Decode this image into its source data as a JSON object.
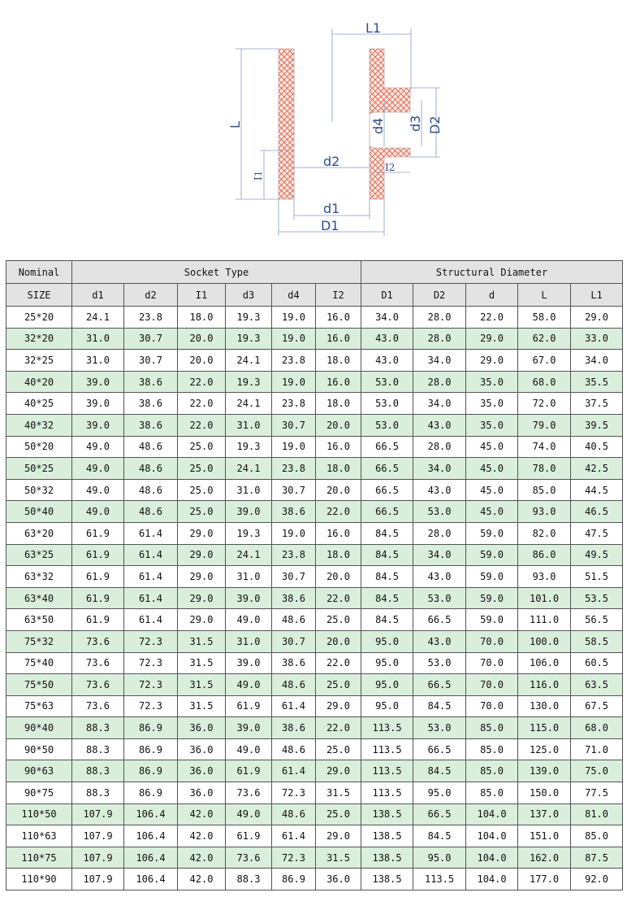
{
  "drawing": {
    "labels": {
      "L1": "L1",
      "L": "L",
      "d4": "d4",
      "d3": "d3",
      "D2": "D2",
      "d2": "d2",
      "I1": "I1",
      "I2": "I2",
      "d1": "d1",
      "D1": "D1"
    },
    "hatch_color": "#e0604a",
    "dim_color": "#2f4f8a"
  },
  "table": {
    "group_headers": [
      "Nominal",
      "Socket Type",
      "Structural Diameter"
    ],
    "columns": [
      "SIZE",
      "d1",
      "d2",
      "I1",
      "d3",
      "d4",
      "I2",
      "D1",
      "D2",
      "d",
      "L",
      "L1"
    ],
    "colors": {
      "header": "#e3e3e3",
      "stripe": "#d9eedb"
    },
    "rows": [
      [
        "25*20",
        "24.1",
        "23.8",
        "18.0",
        "19.3",
        "19.0",
        "16.0",
        "34.0",
        "28.0",
        "22.0",
        "58.0",
        "29.0"
      ],
      [
        "32*20",
        "31.0",
        "30.7",
        "20.0",
        "19.3",
        "19.0",
        "16.0",
        "43.0",
        "28.0",
        "29.0",
        "62.0",
        "33.0"
      ],
      [
        "32*25",
        "31.0",
        "30.7",
        "20.0",
        "24.1",
        "23.8",
        "18.0",
        "43.0",
        "34.0",
        "29.0",
        "67.0",
        "34.0"
      ],
      [
        "40*20",
        "39.0",
        "38.6",
        "22.0",
        "19.3",
        "19.0",
        "16.0",
        "53.0",
        "28.0",
        "35.0",
        "68.0",
        "35.5"
      ],
      [
        "40*25",
        "39.0",
        "38.6",
        "22.0",
        "24.1",
        "23.8",
        "18.0",
        "53.0",
        "34.0",
        "35.0",
        "72.0",
        "37.5"
      ],
      [
        "40*32",
        "39.0",
        "38.6",
        "22.0",
        "31.0",
        "30.7",
        "20.0",
        "53.0",
        "43.0",
        "35.0",
        "79.0",
        "39.5"
      ],
      [
        "50*20",
        "49.0",
        "48.6",
        "25.0",
        "19.3",
        "19.0",
        "16.0",
        "66.5",
        "28.0",
        "45.0",
        "74.0",
        "40.5"
      ],
      [
        "50*25",
        "49.0",
        "48.6",
        "25.0",
        "24.1",
        "23.8",
        "18.0",
        "66.5",
        "34.0",
        "45.0",
        "78.0",
        "42.5"
      ],
      [
        "50*32",
        "49.0",
        "48.6",
        "25.0",
        "31.0",
        "30.7",
        "20.0",
        "66.5",
        "43.0",
        "45.0",
        "85.0",
        "44.5"
      ],
      [
        "50*40",
        "49.0",
        "48.6",
        "25.0",
        "39.0",
        "38.6",
        "22.0",
        "66.5",
        "53.0",
        "45.0",
        "93.0",
        "46.5"
      ],
      [
        "63*20",
        "61.9",
        "61.4",
        "29.0",
        "19.3",
        "19.0",
        "16.0",
        "84.5",
        "28.0",
        "59.0",
        "82.0",
        "47.5"
      ],
      [
        "63*25",
        "61.9",
        "61.4",
        "29.0",
        "24.1",
        "23.8",
        "18.0",
        "84.5",
        "34.0",
        "59.0",
        "86.0",
        "49.5"
      ],
      [
        "63*32",
        "61.9",
        "61.4",
        "29.0",
        "31.0",
        "30.7",
        "20.0",
        "84.5",
        "43.0",
        "59.0",
        "93.0",
        "51.5"
      ],
      [
        "63*40",
        "61.9",
        "61.4",
        "29.0",
        "39.0",
        "38.6",
        "22.0",
        "84.5",
        "53.0",
        "59.0",
        "101.0",
        "53.5"
      ],
      [
        "63*50",
        "61.9",
        "61.4",
        "29.0",
        "49.0",
        "48.6",
        "25.0",
        "84.5",
        "66.5",
        "59.0",
        "111.0",
        "56.5"
      ],
      [
        "75*32",
        "73.6",
        "72.3",
        "31.5",
        "31.0",
        "30.7",
        "20.0",
        "95.0",
        "43.0",
        "70.0",
        "100.0",
        "58.5"
      ],
      [
        "75*40",
        "73.6",
        "72.3",
        "31.5",
        "39.0",
        "38.6",
        "22.0",
        "95.0",
        "53.0",
        "70.0",
        "106.0",
        "60.5"
      ],
      [
        "75*50",
        "73.6",
        "72.3",
        "31.5",
        "49.0",
        "48.6",
        "25.0",
        "95.0",
        "66.5",
        "70.0",
        "116.0",
        "63.5"
      ],
      [
        "75*63",
        "73.6",
        "72.3",
        "31.5",
        "61.9",
        "61.4",
        "29.0",
        "95.0",
        "84.5",
        "70.0",
        "130.0",
        "67.5"
      ],
      [
        "90*40",
        "88.3",
        "86.9",
        "36.0",
        "39.0",
        "38.6",
        "22.0",
        "113.5",
        "53.0",
        "85.0",
        "115.0",
        "68.0"
      ],
      [
        "90*50",
        "88.3",
        "86.9",
        "36.0",
        "49.0",
        "48.6",
        "25.0",
        "113.5",
        "66.5",
        "85.0",
        "125.0",
        "71.0"
      ],
      [
        "90*63",
        "88.3",
        "86.9",
        "36.0",
        "61.9",
        "61.4",
        "29.0",
        "113.5",
        "84.5",
        "85.0",
        "139.0",
        "75.0"
      ],
      [
        "90*75",
        "88.3",
        "86.9",
        "36.0",
        "73.6",
        "72.3",
        "31.5",
        "113.5",
        "95.0",
        "85.0",
        "150.0",
        "77.5"
      ],
      [
        "110*50",
        "107.9",
        "106.4",
        "42.0",
        "49.0",
        "48.6",
        "25.0",
        "138.5",
        "66.5",
        "104.0",
        "137.0",
        "81.0"
      ],
      [
        "110*63",
        "107.9",
        "106.4",
        "42.0",
        "61.9",
        "61.4",
        "29.0",
        "138.5",
        "84.5",
        "104.0",
        "151.0",
        "85.0"
      ],
      [
        "110*75",
        "107.9",
        "106.4",
        "42.0",
        "73.6",
        "72.3",
        "31.5",
        "138.5",
        "95.0",
        "104.0",
        "162.0",
        "87.5"
      ],
      [
        "110*90",
        "107.9",
        "106.4",
        "42.0",
        "88.3",
        "86.9",
        "36.0",
        "138.5",
        "113.5",
        "104.0",
        "177.0",
        "92.0"
      ]
    ]
  }
}
